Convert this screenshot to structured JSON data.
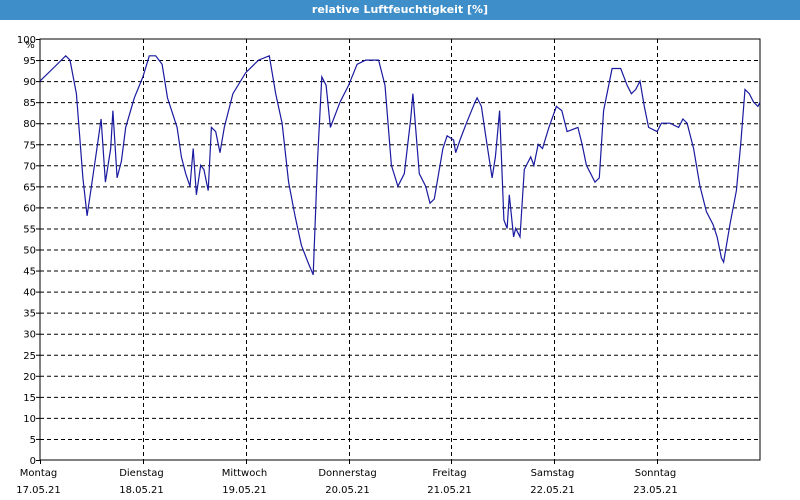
{
  "window_title": "relative Luftfeuchtigkeit [%]",
  "colors": {
    "title_bar": "#3d8ec9",
    "series": "#1a1aa0",
    "grid": "#000000"
  },
  "chart_data": {
    "type": "line",
    "title": "relative Luftfeuchtigkeit [%]",
    "ylabel": "%",
    "ylim": [
      0,
      100
    ],
    "y_ticks": [
      0,
      5,
      10,
      15,
      20,
      25,
      30,
      35,
      40,
      45,
      50,
      55,
      60,
      65,
      70,
      75,
      80,
      85,
      90,
      95,
      100
    ],
    "grid": true,
    "x_range": [
      "2021-05-17T00:00",
      "2021-05-24T00:00"
    ],
    "x_ticks": [
      {
        "day": "Montag",
        "date": "17.05.21",
        "x": "2021-05-17T00:00"
      },
      {
        "day": "Dienstag",
        "date": "18.05.21",
        "x": "2021-05-18T00:00"
      },
      {
        "day": "Mittwoch",
        "date": "19.05.21",
        "x": "2021-05-19T00:00"
      },
      {
        "day": "Donnerstag",
        "date": "20.05.21",
        "x": "2021-05-20T00:00"
      },
      {
        "day": "Freitag",
        "date": "21.05.21",
        "x": "2021-05-21T00:00"
      },
      {
        "day": "Samstag",
        "date": "22.05.21",
        "x": "2021-05-22T00:00"
      },
      {
        "day": "Sonntag",
        "date": "23.05.21",
        "x": "2021-05-23T00:00"
      }
    ],
    "series": [
      {
        "values": [
          [
            "2021-05-17T00:00",
            90
          ],
          [
            "2021-05-17T03:00",
            93
          ],
          [
            "2021-05-17T06:00",
            96
          ],
          [
            "2021-05-17T07:00",
            95
          ],
          [
            "2021-05-17T08:30",
            87
          ],
          [
            "2021-05-17T10:00",
            67
          ],
          [
            "2021-05-17T11:00",
            58
          ],
          [
            "2021-05-17T13:00",
            72
          ],
          [
            "2021-05-17T14:15",
            81
          ],
          [
            "2021-05-17T15:15",
            66
          ],
          [
            "2021-05-17T16:30",
            74
          ],
          [
            "2021-05-17T17:00",
            83
          ],
          [
            "2021-05-17T18:00",
            67
          ],
          [
            "2021-05-17T19:00",
            71
          ],
          [
            "2021-05-17T20:00",
            79
          ],
          [
            "2021-05-17T22:00",
            86
          ],
          [
            "2021-05-18T00:00",
            91
          ],
          [
            "2021-05-18T01:30",
            96
          ],
          [
            "2021-05-18T03:00",
            96
          ],
          [
            "2021-05-18T04:30",
            94
          ],
          [
            "2021-05-18T05:45",
            86
          ],
          [
            "2021-05-18T08:00",
            79
          ],
          [
            "2021-05-18T09:00",
            72
          ],
          [
            "2021-05-18T10:00",
            68
          ],
          [
            "2021-05-18T11:00",
            65
          ],
          [
            "2021-05-18T11:45",
            74
          ],
          [
            "2021-05-18T12:30",
            63
          ],
          [
            "2021-05-18T13:30",
            70
          ],
          [
            "2021-05-18T14:15",
            69
          ],
          [
            "2021-05-18T15:15",
            64
          ],
          [
            "2021-05-18T16:00",
            79
          ],
          [
            "2021-05-18T17:00",
            78
          ],
          [
            "2021-05-18T18:00",
            73
          ],
          [
            "2021-05-18T19:00",
            79
          ],
          [
            "2021-05-18T21:00",
            87
          ],
          [
            "2021-05-19T00:00",
            92
          ],
          [
            "2021-05-19T03:00",
            95
          ],
          [
            "2021-05-19T05:30",
            96
          ],
          [
            "2021-05-19T07:00",
            87
          ],
          [
            "2021-05-19T08:30",
            80
          ],
          [
            "2021-05-19T10:00",
            66
          ],
          [
            "2021-05-19T11:30",
            58
          ],
          [
            "2021-05-19T13:00",
            51
          ],
          [
            "2021-05-19T14:30",
            47
          ],
          [
            "2021-05-19T15:45",
            44
          ],
          [
            "2021-05-19T16:45",
            71
          ],
          [
            "2021-05-19T17:45",
            91
          ],
          [
            "2021-05-19T18:45",
            89
          ],
          [
            "2021-05-19T19:45",
            79
          ],
          [
            "2021-05-19T22:00",
            85
          ],
          [
            "2021-05-20T00:00",
            89
          ],
          [
            "2021-05-20T02:00",
            94
          ],
          [
            "2021-05-20T04:00",
            95
          ],
          [
            "2021-05-20T07:00",
            95
          ],
          [
            "2021-05-20T08:30",
            89
          ],
          [
            "2021-05-20T10:00",
            70
          ],
          [
            "2021-05-20T11:30",
            65
          ],
          [
            "2021-05-20T13:00",
            68
          ],
          [
            "2021-05-20T14:30",
            81
          ],
          [
            "2021-05-20T15:00",
            87
          ],
          [
            "2021-05-20T16:30",
            68
          ],
          [
            "2021-05-20T18:00",
            65
          ],
          [
            "2021-05-20T19:00",
            61
          ],
          [
            "2021-05-20T20:00",
            62
          ],
          [
            "2021-05-20T21:00",
            68
          ],
          [
            "2021-05-20T22:00",
            74
          ],
          [
            "2021-05-20T23:00",
            77
          ],
          [
            "2021-05-21T00:30",
            76
          ],
          [
            "2021-05-21T01:00",
            73
          ],
          [
            "2021-05-21T02:00",
            76
          ],
          [
            "2021-05-21T03:30",
            80
          ],
          [
            "2021-05-21T05:30",
            85
          ],
          [
            "2021-05-21T06:00",
            86
          ],
          [
            "2021-05-21T07:00",
            84
          ],
          [
            "2021-05-21T08:00",
            77
          ],
          [
            "2021-05-21T09:30",
            67
          ],
          [
            "2021-05-21T10:15",
            72
          ],
          [
            "2021-05-21T11:15",
            83
          ],
          [
            "2021-05-21T12:15",
            57
          ],
          [
            "2021-05-21T13:00",
            55
          ],
          [
            "2021-05-21T13:30",
            63
          ],
          [
            "2021-05-21T14:30",
            53
          ],
          [
            "2021-05-21T15:00",
            55
          ],
          [
            "2021-05-21T16:00",
            53
          ],
          [
            "2021-05-21T17:00",
            69
          ],
          [
            "2021-05-21T18:30",
            72
          ],
          [
            "2021-05-21T19:15",
            70
          ],
          [
            "2021-05-21T20:15",
            75
          ],
          [
            "2021-05-21T21:15",
            74
          ],
          [
            "2021-05-21T22:45",
            79
          ],
          [
            "2021-05-22T00:30",
            84
          ],
          [
            "2021-05-22T01:45",
            83
          ],
          [
            "2021-05-22T03:00",
            78
          ],
          [
            "2021-05-22T05:30",
            79
          ],
          [
            "2021-05-22T06:30",
            75
          ],
          [
            "2021-05-22T07:30",
            70
          ],
          [
            "2021-05-22T08:30",
            68
          ],
          [
            "2021-05-22T09:30",
            66
          ],
          [
            "2021-05-22T10:30",
            67
          ],
          [
            "2021-05-22T11:30",
            83
          ],
          [
            "2021-05-22T13:30",
            93
          ],
          [
            "2021-05-22T15:30",
            93
          ],
          [
            "2021-05-22T17:00",
            89
          ],
          [
            "2021-05-22T18:00",
            87
          ],
          [
            "2021-05-22T19:00",
            88
          ],
          [
            "2021-05-22T20:00",
            90
          ],
          [
            "2021-05-22T21:00",
            84
          ],
          [
            "2021-05-22T22:00",
            79
          ],
          [
            "2021-05-23T00:00",
            78
          ],
          [
            "2021-05-23T01:00",
            80
          ],
          [
            "2021-05-23T03:00",
            80
          ],
          [
            "2021-05-23T05:00",
            79
          ],
          [
            "2021-05-23T06:00",
            81
          ],
          [
            "2021-05-23T07:00",
            80
          ],
          [
            "2021-05-23T08:30",
            74
          ],
          [
            "2021-05-23T10:00",
            65
          ],
          [
            "2021-05-23T11:30",
            59
          ],
          [
            "2021-05-23T13:00",
            56
          ],
          [
            "2021-05-23T14:00",
            53
          ],
          [
            "2021-05-23T15:00",
            48
          ],
          [
            "2021-05-23T15:30",
            47
          ],
          [
            "2021-05-23T17:00",
            56
          ],
          [
            "2021-05-23T18:30",
            64
          ],
          [
            "2021-05-23T19:30",
            75
          ],
          [
            "2021-05-23T20:30",
            88
          ],
          [
            "2021-05-23T21:30",
            87
          ],
          [
            "2021-05-23T22:30",
            85
          ],
          [
            "2021-05-23T23:30",
            84
          ],
          [
            "2021-05-24T00:00",
            85
          ]
        ]
      }
    ]
  }
}
